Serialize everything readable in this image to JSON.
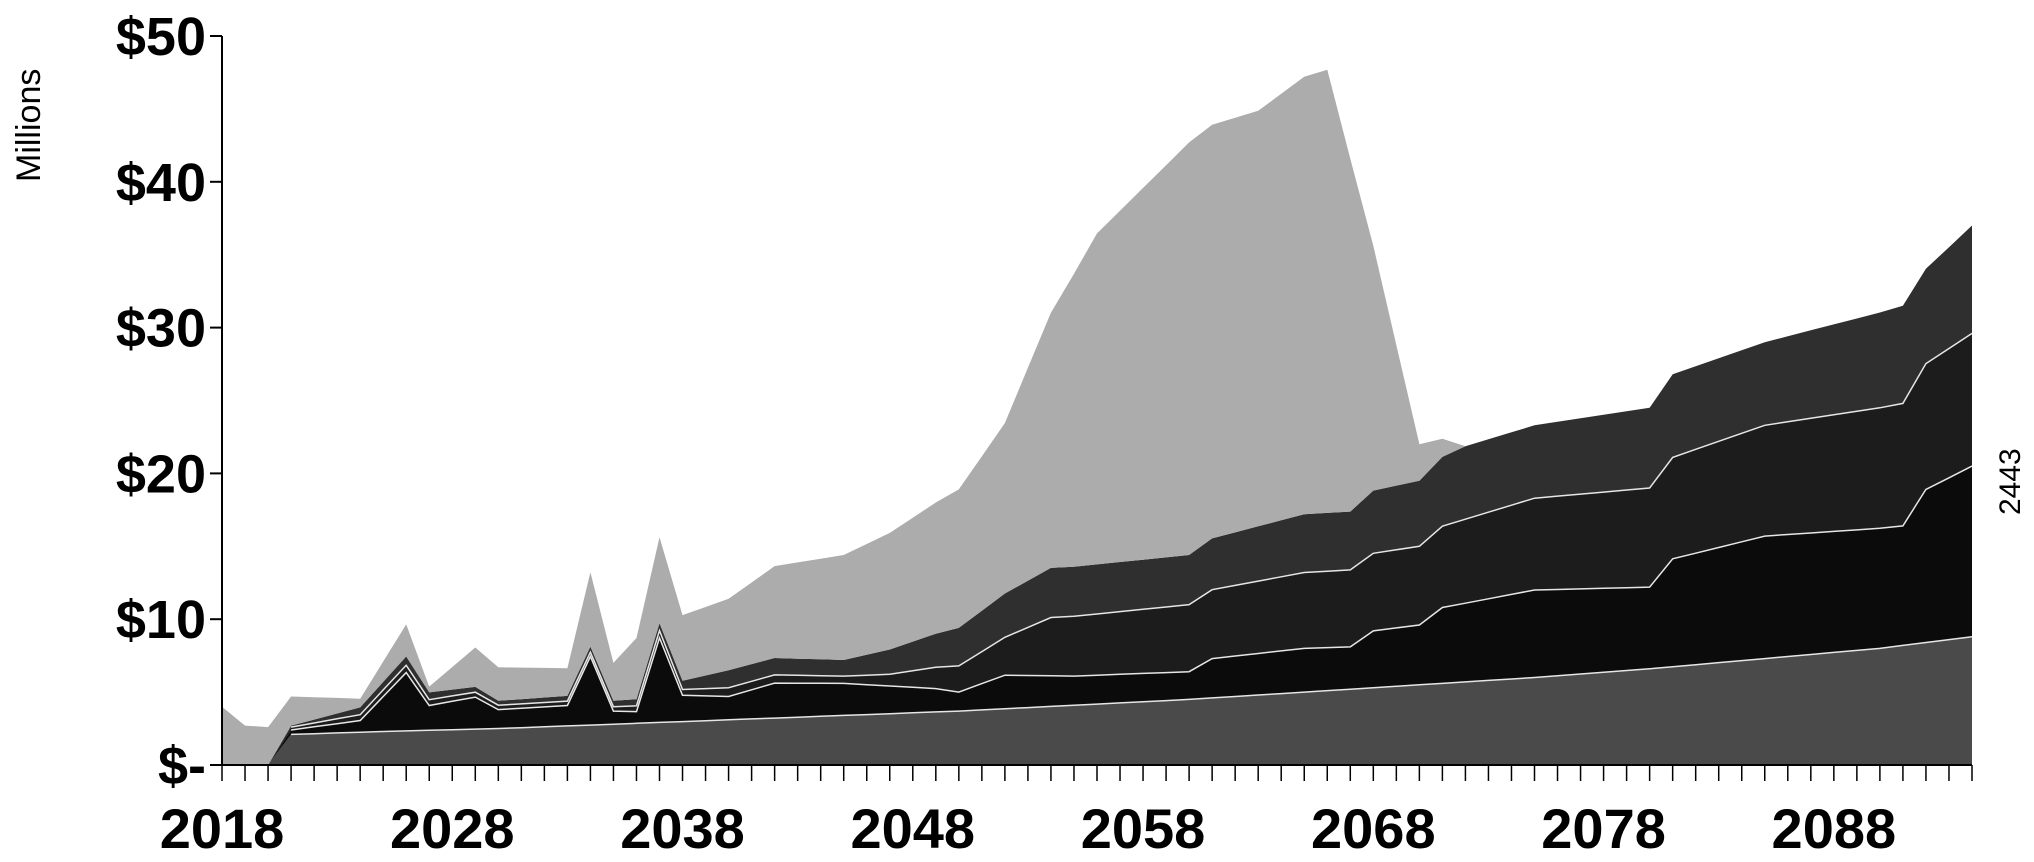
{
  "chart_data": {
    "type": "area",
    "stacked": true,
    "ylabel": "Millions",
    "ylim": [
      0,
      50
    ],
    "xlim": [
      2018,
      2094
    ],
    "y_ticks": [
      0,
      10,
      20,
      30,
      40,
      50
    ],
    "y_tick_labels": [
      "$-",
      "$10",
      "$20",
      "$30",
      "$40",
      "$50"
    ],
    "x_ticks": [
      2018,
      2028,
      2038,
      2048,
      2058,
      2068,
      2078,
      2088
    ],
    "x_tick_labels": [
      "2018",
      "2028",
      "2038",
      "2048",
      "2058",
      "2068",
      "2078",
      "2088"
    ],
    "side_label": "2443",
    "series": [
      {
        "color": "#4a4a4a",
        "points": [
          [
            2020,
            0
          ],
          [
            2021,
            2.1
          ],
          [
            2025,
            2.3
          ],
          [
            2030,
            2.5
          ],
          [
            2035,
            2.8
          ],
          [
            2040,
            3.1
          ],
          [
            2045,
            3.4
          ],
          [
            2050,
            3.7
          ],
          [
            2055,
            4.1
          ],
          [
            2060,
            4.5
          ],
          [
            2065,
            5.0
          ],
          [
            2070,
            5.5
          ],
          [
            2075,
            6.0
          ],
          [
            2080,
            6.6
          ],
          [
            2085,
            7.3
          ],
          [
            2090,
            8.0
          ],
          [
            2094,
            8.8
          ]
        ]
      },
      {
        "color": "#0b0b0b",
        "points": [
          [
            2020,
            0
          ],
          [
            2021,
            0.3
          ],
          [
            2024,
            0.8
          ],
          [
            2026,
            4.0
          ],
          [
            2027,
            1.7
          ],
          [
            2029,
            2.2
          ],
          [
            2030,
            1.3
          ],
          [
            2033,
            1.4
          ],
          [
            2034,
            4.7
          ],
          [
            2035,
            0.9
          ],
          [
            2036,
            0.8
          ],
          [
            2037,
            5.8
          ],
          [
            2038,
            1.8
          ],
          [
            2040,
            1.6
          ],
          [
            2042,
            2.4
          ],
          [
            2045,
            2.2
          ],
          [
            2049,
            1.6
          ],
          [
            2050,
            1.3
          ],
          [
            2052,
            2.3
          ],
          [
            2055,
            2.0
          ],
          [
            2060,
            1.9
          ],
          [
            2061,
            2.7
          ],
          [
            2065,
            3.0
          ],
          [
            2067,
            2.9
          ],
          [
            2068,
            3.9
          ],
          [
            2070,
            4.1
          ],
          [
            2071,
            5.2
          ],
          [
            2075,
            6.0
          ],
          [
            2080,
            5.6
          ],
          [
            2081,
            7.4
          ],
          [
            2085,
            8.4
          ],
          [
            2091,
            8.2
          ],
          [
            2092,
            10.5
          ],
          [
            2094,
            11.7
          ]
        ]
      },
      {
        "color": "#1c1c1c",
        "points": [
          [
            2020,
            0
          ],
          [
            2021,
            0.2
          ],
          [
            2024,
            0.4
          ],
          [
            2026,
            0.5
          ],
          [
            2027,
            0.4
          ],
          [
            2030,
            0.3
          ],
          [
            2035,
            0.3
          ],
          [
            2037,
            0.5
          ],
          [
            2038,
            0.4
          ],
          [
            2040,
            0.6
          ],
          [
            2045,
            0.5
          ],
          [
            2047,
            0.8
          ],
          [
            2050,
            1.8
          ],
          [
            2052,
            2.6
          ],
          [
            2054,
            4.0
          ],
          [
            2060,
            4.6
          ],
          [
            2065,
            5.2
          ],
          [
            2070,
            5.4
          ],
          [
            2075,
            6.3
          ],
          [
            2080,
            6.8
          ],
          [
            2085,
            7.6
          ],
          [
            2091,
            8.4
          ],
          [
            2094,
            9.1
          ]
        ]
      },
      {
        "color": "#2f2f2f",
        "points": [
          [
            2020,
            0
          ],
          [
            2021,
            0.1
          ],
          [
            2024,
            0.5
          ],
          [
            2026,
            0.6
          ],
          [
            2027,
            0.5
          ],
          [
            2030,
            0.3
          ],
          [
            2035,
            0.4
          ],
          [
            2037,
            0.5
          ],
          [
            2038,
            0.6
          ],
          [
            2040,
            1.2
          ],
          [
            2045,
            1.1
          ],
          [
            2047,
            1.7
          ],
          [
            2050,
            2.6
          ],
          [
            2052,
            3.0
          ],
          [
            2054,
            3.4
          ],
          [
            2060,
            3.4
          ],
          [
            2065,
            4.0
          ],
          [
            2067,
            4.0
          ],
          [
            2068,
            4.3
          ],
          [
            2070,
            4.5
          ],
          [
            2072,
            5.0
          ],
          [
            2075,
            5.0
          ],
          [
            2080,
            5.5
          ],
          [
            2081,
            5.7
          ],
          [
            2085,
            5.7
          ],
          [
            2091,
            6.7
          ],
          [
            2092,
            6.5
          ],
          [
            2094,
            7.4
          ]
        ]
      },
      {
        "color": "#acacac",
        "points": [
          [
            2018,
            4.0
          ],
          [
            2019,
            2.7
          ],
          [
            2020,
            2.6
          ],
          [
            2021,
            2.0
          ],
          [
            2024,
            0.6
          ],
          [
            2026,
            2.2
          ],
          [
            2027,
            0.4
          ],
          [
            2029,
            2.7
          ],
          [
            2030,
            2.3
          ],
          [
            2033,
            1.9
          ],
          [
            2034,
            5.1
          ],
          [
            2035,
            2.6
          ],
          [
            2036,
            4.2
          ],
          [
            2037,
            5.9
          ],
          [
            2038,
            4.5
          ],
          [
            2040,
            4.9
          ],
          [
            2042,
            6.3
          ],
          [
            2045,
            7.2
          ],
          [
            2047,
            8.0
          ],
          [
            2050,
            9.5
          ],
          [
            2052,
            11.7
          ],
          [
            2054,
            17.5
          ],
          [
            2056,
            22.7
          ],
          [
            2058,
            25.5
          ],
          [
            2060,
            28.3
          ],
          [
            2063,
            28.5
          ],
          [
            2065,
            30.0
          ],
          [
            2066,
            30.4
          ],
          [
            2067,
            24.2
          ],
          [
            2068,
            16.8
          ],
          [
            2070,
            2.5
          ],
          [
            2072,
            0.0
          ],
          [
            2094,
            0.0
          ]
        ]
      }
    ]
  }
}
